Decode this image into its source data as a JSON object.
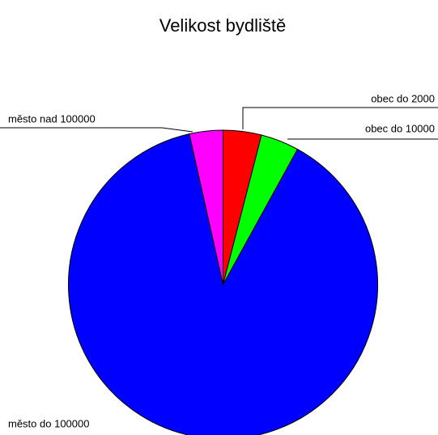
{
  "chart_data": {
    "type": "pie",
    "title": "Velikost bydliště",
    "categories": [
      "obec do 2000",
      "obec do 10000",
      "město do 100000",
      "město nad 100000"
    ],
    "values": [
      4,
      4,
      88.5,
      3.5
    ],
    "colors": [
      "#ff0000",
      "#00ff00",
      "#0000ff",
      "#ff00ff"
    ]
  }
}
